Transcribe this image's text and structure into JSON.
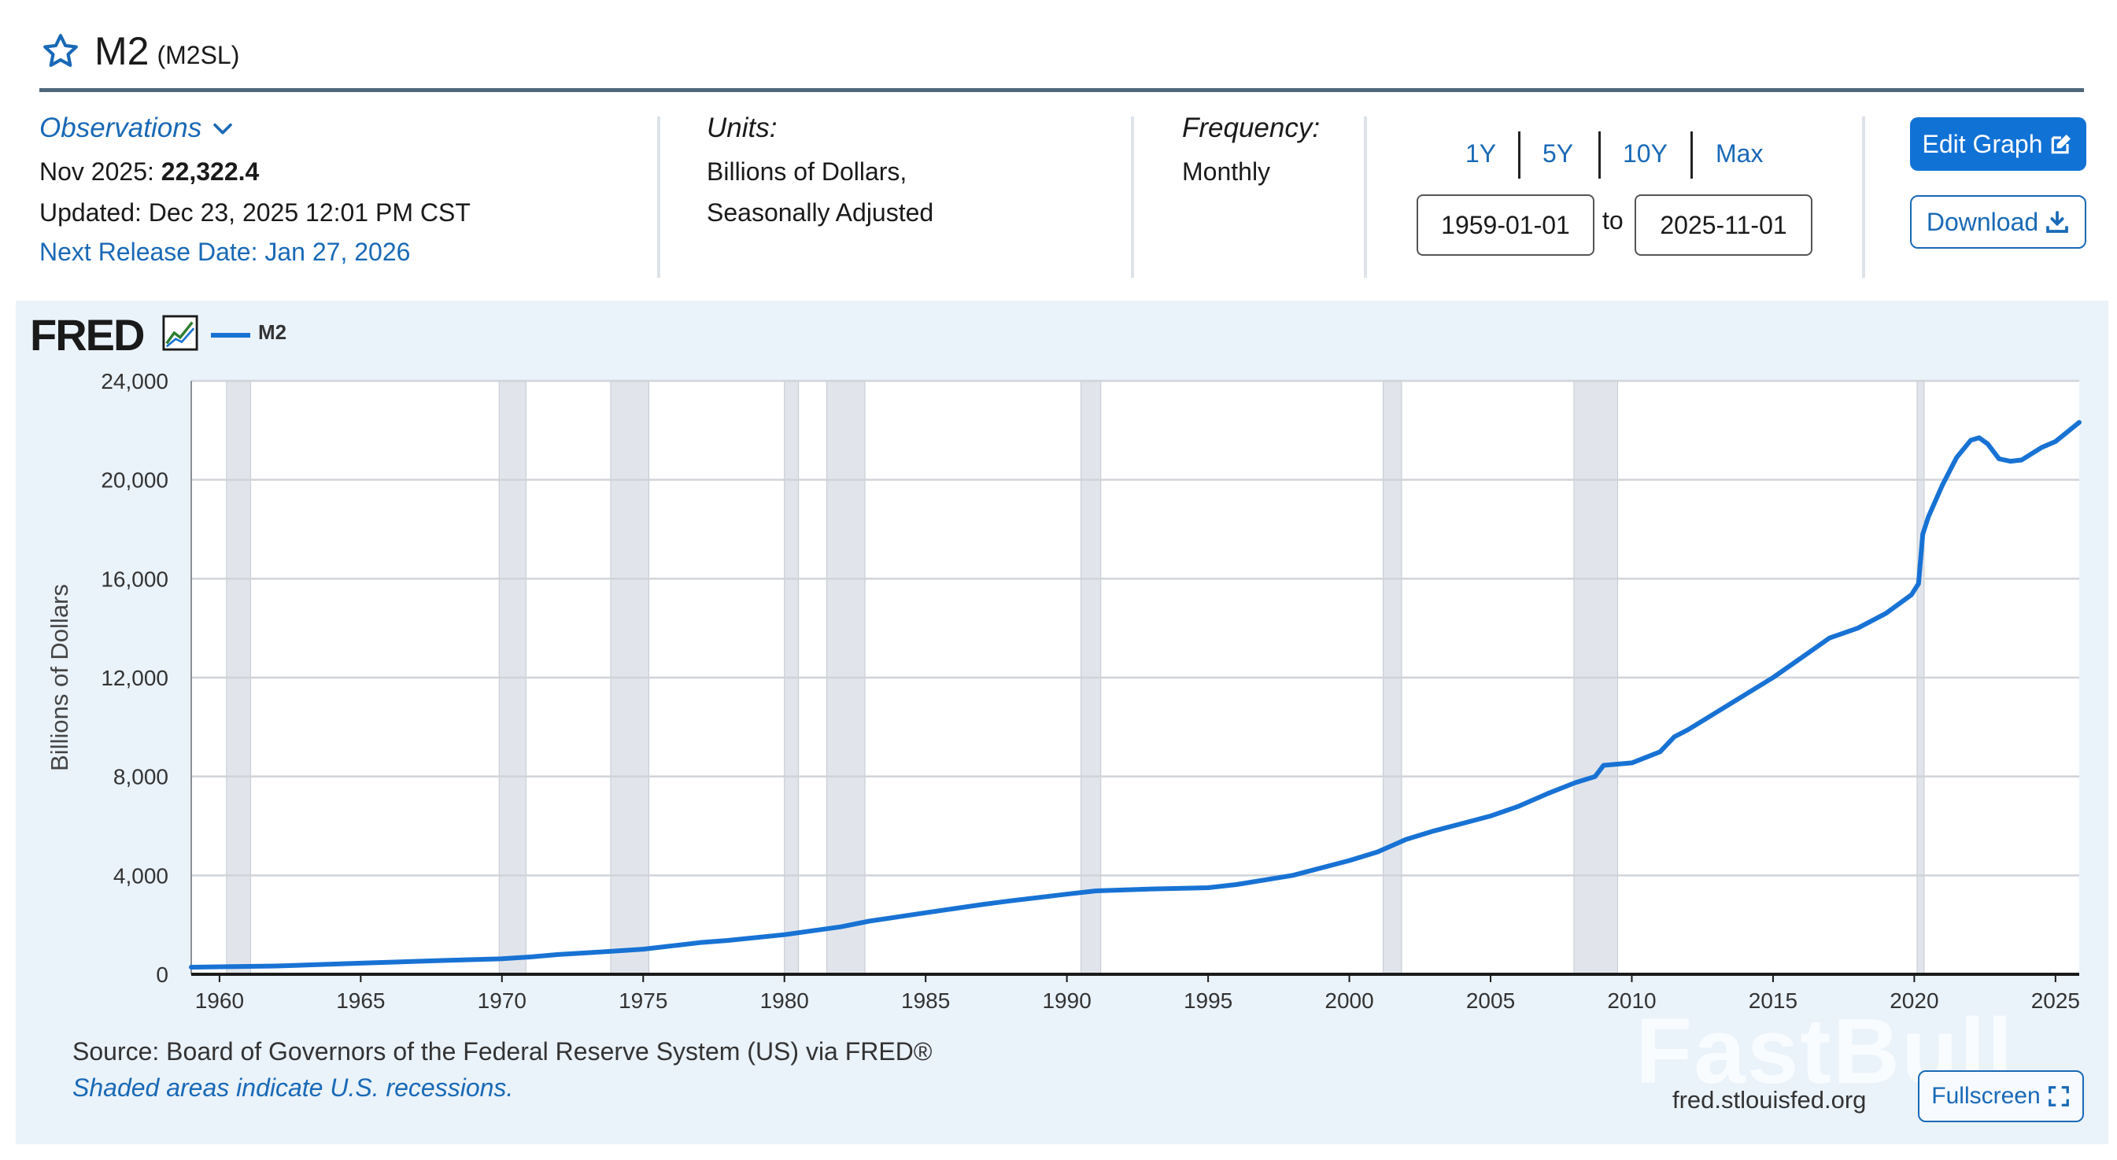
{
  "header": {
    "title": "M2",
    "series_id": "(M2SL)"
  },
  "info": {
    "observations_label": "Observations",
    "obs_date": "Nov 2025:",
    "obs_value": "22,322.4",
    "updated": "Updated: Dec 23, 2025 12:01 PM CST",
    "next_release": "Next Release Date: Jan 27, 2026",
    "units_label": "Units:",
    "units_line1": "Billions of Dollars,",
    "units_line2": "Seasonally Adjusted",
    "frequency_label": "Frequency:",
    "frequency_value": "Monthly"
  },
  "controls": {
    "ranges": [
      "1Y",
      "5Y",
      "10Y",
      "Max"
    ],
    "start_date": "1959-01-01",
    "to_label": "to",
    "end_date": "2025-11-01",
    "edit_graph": "Edit Graph",
    "download": "Download",
    "fullscreen": "Fullscreen"
  },
  "branding": {
    "logo": "FRED",
    "site": "fred.stlouisfed.org",
    "watermark": "FastBull"
  },
  "footer": {
    "source": "Source: Board of Governors of the Federal Reserve System (US) via FRED®",
    "shaded": "Shaded areas indicate U.S. recessions."
  },
  "colors": {
    "accent": "#1172d6",
    "link": "#1969b6",
    "series": "#1872d4",
    "panel": "#eaf2fa",
    "recession": "#e1e5eb"
  },
  "chart_data": {
    "type": "line",
    "legend": [
      "M2"
    ],
    "ylabel": "Billions of Dollars",
    "xlabel": "",
    "xlim": [
      1959.0,
      2025.84
    ],
    "ylim": [
      0,
      24000
    ],
    "yticks": [
      0,
      4000,
      8000,
      12000,
      16000,
      20000,
      24000
    ],
    "ytick_labels": [
      "0",
      "4,000",
      "8,000",
      "12,000",
      "16,000",
      "20,000",
      "24,000"
    ],
    "xticks": [
      1960,
      1965,
      1970,
      1975,
      1980,
      1985,
      1990,
      1995,
      2000,
      2005,
      2010,
      2015,
      2020,
      2025
    ],
    "xtick_labels": [
      "1960",
      "1965",
      "1970",
      "1975",
      "1980",
      "1985",
      "1990",
      "1995",
      "2000",
      "2005",
      "2010",
      "2015",
      "2020",
      "2025"
    ],
    "recessions": [
      [
        1960.25,
        1961.1
      ],
      [
        1969.9,
        1970.85
      ],
      [
        1973.85,
        1975.2
      ],
      [
        1980.0,
        1980.5
      ],
      [
        1981.5,
        1982.85
      ],
      [
        1990.5,
        1991.2
      ],
      [
        2001.2,
        2001.85
      ],
      [
        2007.95,
        2009.5
      ],
      [
        2020.1,
        2020.35
      ]
    ],
    "series": [
      {
        "name": "M2",
        "x": [
          1959.0,
          1960,
          1962,
          1965,
          1968,
          1970,
          1971,
          1972,
          1973,
          1975,
          1977,
          1978,
          1980,
          1982,
          1983,
          1985,
          1987,
          1988,
          1990,
          1991,
          1993,
          1995,
          1996,
          1998,
          2000,
          2001,
          2002,
          2003,
          2004,
          2005,
          2006,
          2007,
          2008,
          2008.7,
          2009,
          2010,
          2011,
          2011.5,
          2012,
          2013,
          2014,
          2015,
          2016,
          2017,
          2018,
          2019,
          2019.9,
          2020.15,
          2020.3,
          2020.5,
          2021,
          2021.5,
          2022.0,
          2022.3,
          2022.6,
          2023.0,
          2023.4,
          2023.8,
          2024.5,
          2025.0,
          2025.84
        ],
        "values": [
          287,
          303,
          335,
          450,
          560,
          626,
          700,
          800,
          865,
          1015,
          1280,
          1370,
          1600,
          1920,
          2150,
          2490,
          2820,
          2970,
          3240,
          3370,
          3450,
          3500,
          3630,
          4000,
          4600,
          4950,
          5450,
          5800,
          6100,
          6400,
          6800,
          7300,
          7750,
          8000,
          8450,
          8550,
          9000,
          9600,
          9900,
          10600,
          11300,
          12000,
          12800,
          13600,
          14000,
          14600,
          15350,
          15800,
          17800,
          18500,
          19800,
          20900,
          21600,
          21700,
          21450,
          20850,
          20750,
          20800,
          21300,
          21550,
          22322.4
        ]
      }
    ]
  }
}
